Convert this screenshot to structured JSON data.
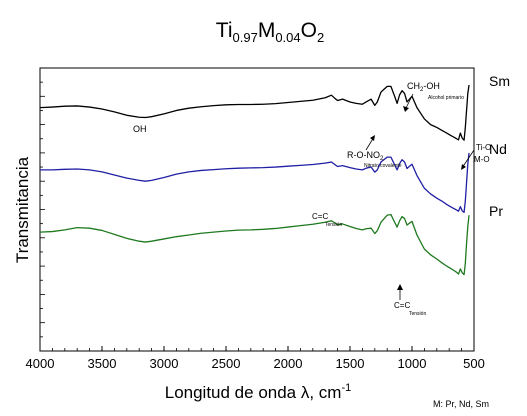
{
  "chart_data": {
    "type": "line",
    "title": {
      "base": "Ti",
      "sub1": "0.97",
      "mid": "M",
      "sub2": "0.04",
      "tail": "O",
      "sub3": "2"
    },
    "xlabel": "Longitud de onda λ, cm",
    "xlabel_sup": "-1",
    "ylabel": "Transmitancia",
    "footnote": "M: Pr, Nd, Sm",
    "xlim": [
      4000,
      500
    ],
    "x_ticks": [
      4000,
      3500,
      3000,
      2500,
      2000,
      1500,
      1000,
      500
    ],
    "x_tick_labels": [
      "4000",
      "3500",
      "3000",
      "2500",
      "2000",
      "1500",
      "1000",
      "500"
    ],
    "y_ticks_shown": false,
    "grid": false,
    "series": [
      {
        "name": "Sm",
        "color": "#000000",
        "points": [
          [
            4000,
            0.86
          ],
          [
            3900,
            0.862
          ],
          [
            3800,
            0.865
          ],
          [
            3700,
            0.866
          ],
          [
            3600,
            0.862
          ],
          [
            3500,
            0.855
          ],
          [
            3400,
            0.845
          ],
          [
            3300,
            0.833
          ],
          [
            3200,
            0.826
          ],
          [
            3150,
            0.825
          ],
          [
            3100,
            0.828
          ],
          [
            3000,
            0.838
          ],
          [
            2900,
            0.85
          ],
          [
            2800,
            0.858
          ],
          [
            2700,
            0.863
          ],
          [
            2600,
            0.867
          ],
          [
            2500,
            0.87
          ],
          [
            2400,
            0.871
          ],
          [
            2300,
            0.871
          ],
          [
            2200,
            0.872
          ],
          [
            2100,
            0.874
          ],
          [
            2000,
            0.878
          ],
          [
            1900,
            0.882
          ],
          [
            1800,
            0.886
          ],
          [
            1700,
            0.895
          ],
          [
            1650,
            0.904
          ],
          [
            1620,
            0.892
          ],
          [
            1600,
            0.885
          ],
          [
            1560,
            0.89
          ],
          [
            1500,
            0.88
          ],
          [
            1450,
            0.875
          ],
          [
            1400,
            0.872
          ],
          [
            1370,
            0.88
          ],
          [
            1330,
            0.89
          ],
          [
            1300,
            0.868
          ],
          [
            1280,
            0.88
          ],
          [
            1250,
            0.915
          ],
          [
            1200,
            0.935
          ],
          [
            1170,
            0.935
          ],
          [
            1140,
            0.9
          ],
          [
            1120,
            0.875
          ],
          [
            1100,
            0.905
          ],
          [
            1080,
            0.92
          ],
          [
            1060,
            0.91
          ],
          [
            1040,
            0.88
          ],
          [
            1020,
            0.89
          ],
          [
            1000,
            0.9
          ],
          [
            960,
            0.86
          ],
          [
            900,
            0.82
          ],
          [
            850,
            0.8
          ],
          [
            800,
            0.79
          ],
          [
            760,
            0.78
          ],
          [
            720,
            0.77
          ],
          [
            690,
            0.762
          ],
          [
            660,
            0.755
          ],
          [
            640,
            0.75
          ],
          [
            625,
            0.746
          ],
          [
            610,
            0.77
          ],
          [
            595,
            0.752
          ],
          [
            580,
            0.745
          ],
          [
            570,
            0.79
          ],
          [
            560,
            0.85
          ],
          [
            550,
            0.91
          ],
          [
            540,
            0.94
          ]
        ]
      },
      {
        "name": "Nd",
        "color": "#1f1fa6",
        "points": [
          [
            4000,
            0.64
          ],
          [
            3900,
            0.64
          ],
          [
            3800,
            0.642
          ],
          [
            3700,
            0.643
          ],
          [
            3600,
            0.64
          ],
          [
            3500,
            0.633
          ],
          [
            3400,
            0.622
          ],
          [
            3300,
            0.611
          ],
          [
            3200,
            0.603
          ],
          [
            3150,
            0.6
          ],
          [
            3100,
            0.603
          ],
          [
            3000,
            0.613
          ],
          [
            2900,
            0.625
          ],
          [
            2800,
            0.633
          ],
          [
            2700,
            0.638
          ],
          [
            2600,
            0.641
          ],
          [
            2500,
            0.644
          ],
          [
            2400,
            0.646
          ],
          [
            2300,
            0.647
          ],
          [
            2200,
            0.648
          ],
          [
            2100,
            0.65
          ],
          [
            2000,
            0.653
          ],
          [
            1900,
            0.656
          ],
          [
            1800,
            0.659
          ],
          [
            1700,
            0.664
          ],
          [
            1650,
            0.668
          ],
          [
            1620,
            0.658
          ],
          [
            1600,
            0.652
          ],
          [
            1560,
            0.655
          ],
          [
            1500,
            0.648
          ],
          [
            1450,
            0.643
          ],
          [
            1400,
            0.64
          ],
          [
            1370,
            0.646
          ],
          [
            1330,
            0.65
          ],
          [
            1300,
            0.632
          ],
          [
            1280,
            0.64
          ],
          [
            1250,
            0.668
          ],
          [
            1200,
            0.685
          ],
          [
            1170,
            0.685
          ],
          [
            1140,
            0.658
          ],
          [
            1120,
            0.64
          ],
          [
            1100,
            0.662
          ],
          [
            1080,
            0.676
          ],
          [
            1060,
            0.668
          ],
          [
            1040,
            0.645
          ],
          [
            1020,
            0.653
          ],
          [
            1000,
            0.66
          ],
          [
            960,
            0.62
          ],
          [
            900,
            0.575
          ],
          [
            850,
            0.555
          ],
          [
            800,
            0.54
          ],
          [
            760,
            0.53
          ],
          [
            720,
            0.518
          ],
          [
            690,
            0.51
          ],
          [
            660,
            0.503
          ],
          [
            640,
            0.498
          ],
          [
            625,
            0.494
          ],
          [
            610,
            0.51
          ],
          [
            595,
            0.495
          ],
          [
            580,
            0.49
          ],
          [
            570,
            0.53
          ],
          [
            560,
            0.595
          ],
          [
            550,
            0.66
          ],
          [
            540,
            0.7
          ]
        ]
      },
      {
        "name": "Pr",
        "color": "#1f7a1f",
        "points": [
          [
            4000,
            0.42
          ],
          [
            3900,
            0.422
          ],
          [
            3800,
            0.428
          ],
          [
            3700,
            0.436
          ],
          [
            3600,
            0.434
          ],
          [
            3500,
            0.426
          ],
          [
            3400,
            0.412
          ],
          [
            3300,
            0.398
          ],
          [
            3200,
            0.388
          ],
          [
            3150,
            0.385
          ],
          [
            3100,
            0.388
          ],
          [
            3000,
            0.396
          ],
          [
            2900,
            0.404
          ],
          [
            2800,
            0.41
          ],
          [
            2700,
            0.416
          ],
          [
            2600,
            0.42
          ],
          [
            2500,
            0.424
          ],
          [
            2400,
            0.427
          ],
          [
            2300,
            0.428
          ],
          [
            2200,
            0.43
          ],
          [
            2100,
            0.433
          ],
          [
            2000,
            0.438
          ],
          [
            1900,
            0.443
          ],
          [
            1800,
            0.448
          ],
          [
            1700,
            0.455
          ],
          [
            1650,
            0.46
          ],
          [
            1620,
            0.452
          ],
          [
            1600,
            0.446
          ],
          [
            1560,
            0.449
          ],
          [
            1500,
            0.44
          ],
          [
            1450,
            0.433
          ],
          [
            1400,
            0.428
          ],
          [
            1370,
            0.432
          ],
          [
            1330,
            0.434
          ],
          [
            1300,
            0.415
          ],
          [
            1280,
            0.425
          ],
          [
            1250,
            0.455
          ],
          [
            1200,
            0.48
          ],
          [
            1170,
            0.482
          ],
          [
            1140,
            0.455
          ],
          [
            1120,
            0.438
          ],
          [
            1100,
            0.46
          ],
          [
            1080,
            0.475
          ],
          [
            1060,
            0.468
          ],
          [
            1040,
            0.445
          ],
          [
            1020,
            0.452
          ],
          [
            1000,
            0.458
          ],
          [
            960,
            0.41
          ],
          [
            900,
            0.36
          ],
          [
            850,
            0.34
          ],
          [
            800,
            0.325
          ],
          [
            760,
            0.312
          ],
          [
            720,
            0.3
          ],
          [
            690,
            0.292
          ],
          [
            660,
            0.284
          ],
          [
            640,
            0.278
          ],
          [
            625,
            0.272
          ],
          [
            610,
            0.29
          ],
          [
            595,
            0.276
          ],
          [
            580,
            0.27
          ],
          [
            570,
            0.31
          ],
          [
            560,
            0.38
          ],
          [
            550,
            0.44
          ],
          [
            540,
            0.48
          ]
        ]
      }
    ],
    "annotations": {
      "oh": "OH",
      "ch2oh": "CH",
      "ch2oh_sub": "2",
      "ch2oh_tail": "-OH",
      "alcohol": "Alcohol primario",
      "ronob": "R-O-NO",
      "ronob_sub": "2",
      "nitrato": "Nitrato covalente",
      "tio": "Ti-O",
      "mo": "M-O",
      "cc1": "C=C",
      "tension1": "Tensión",
      "cc2": "C=C",
      "tension2": "Tensión"
    }
  }
}
